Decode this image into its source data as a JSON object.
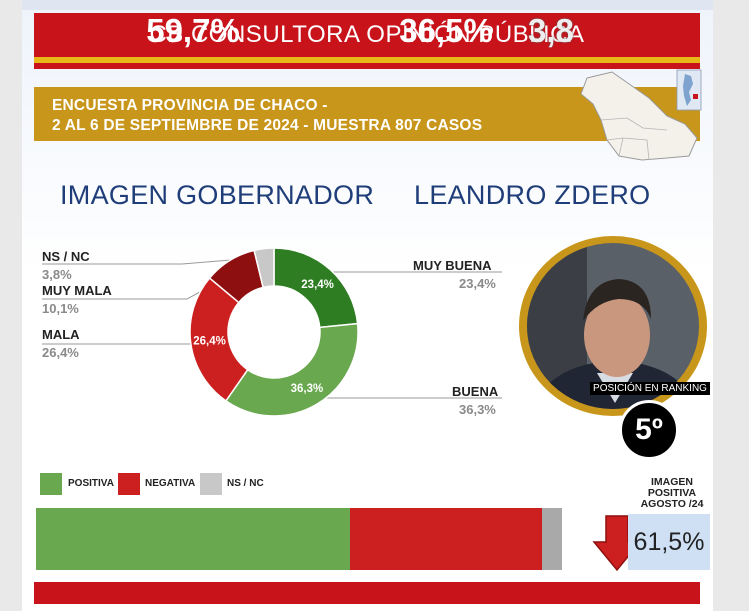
{
  "header": {
    "title": "CB CONSULTORA OPINIÓN PÚBLICA",
    "survey_line1": "ENCUESTA PROVINCIA DE CHACO -",
    "survey_line2": "2 AL 6 DE SEPTIEMBRE DE 2024 - MUESTRA 807 CASOS"
  },
  "headings": {
    "left": "IMAGEN GOBERNADOR",
    "right": "LEANDRO ZDERO"
  },
  "slice_labels": {
    "ns_nc": {
      "name": "NS / NC",
      "value": "3,8%"
    },
    "muy_mala": {
      "name": "MUY MALA",
      "value": "10,1%"
    },
    "mala": {
      "name": "MALA",
      "value": "26,4%"
    },
    "muy_buena": {
      "name": "MUY BUENA",
      "value": "23,4%"
    },
    "buena": {
      "name": "BUENA",
      "value": "36,3%"
    }
  },
  "photo": {
    "rank_label": "POSICIÓN EN RANKING",
    "rank_value": "5º"
  },
  "legend": {
    "positive": "POSITIVA",
    "negative": "NEGATIVA",
    "ns_nc": "NS / NC"
  },
  "summary": {
    "positive_text": "59,7%",
    "negative_text": "36,5%",
    "ns_nc_text": "3,8",
    "previous_label": "IMAGEN POSITIVA AGOSTO /24",
    "previous_value": "61,5%"
  },
  "colors": {
    "muy_buena": "#2e7d22",
    "buena": "#6aa84f",
    "mala": "#cc1f1f",
    "muy_mala": "#8e0f0f",
    "ns_nc": "#c8c8c8",
    "title_red": "#c8131b",
    "gold": "#c8961a",
    "navy": "#1f3d78"
  },
  "chart_data": [
    {
      "type": "pie",
      "categories": [
        "MUY BUENA",
        "BUENA",
        "MALA",
        "MUY MALA",
        "NS / NC"
      ],
      "values": [
        23.4,
        36.3,
        26.4,
        10.1,
        3.8
      ],
      "title": "IMAGEN GOBERNADOR",
      "data_labels": [
        "23,4%",
        "36,3%",
        "26,4%",
        "",
        ""
      ]
    },
    {
      "type": "bar",
      "orientation": "horizontal-stacked",
      "categories": [
        "POSITIVA",
        "NEGATIVA",
        "NS / NC"
      ],
      "values": [
        59.7,
        36.5,
        3.8
      ]
    }
  ]
}
